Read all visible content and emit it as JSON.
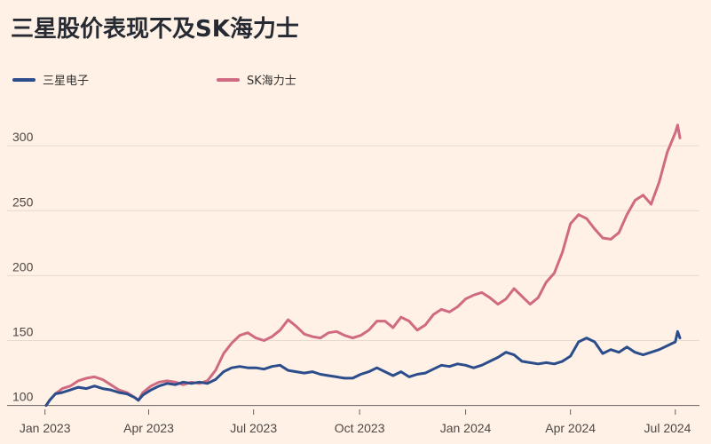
{
  "title": "三星股价表现不及SK海力士",
  "legend": [
    {
      "name": "三星电子",
      "color": "#2B4D8C"
    },
    {
      "name": "SK海力士",
      "color": "#D06A80"
    }
  ],
  "chart_data": {
    "type": "line",
    "title": "三星股价表现不及SK海力士",
    "xlabel": "",
    "ylabel": "",
    "ylim": [
      97,
      322
    ],
    "y_ticks": [
      100,
      150,
      200,
      250,
      300
    ],
    "x_range": [
      "2023-01-02",
      "2024-07-05"
    ],
    "x_ticks": [
      {
        "date": "2023-01-01",
        "label": "Jan 2023"
      },
      {
        "date": "2023-04-01",
        "label": "Apr 2023"
      },
      {
        "date": "2023-07-01",
        "label": "Jul 2023"
      },
      {
        "date": "2023-10-01",
        "label": "Oct 2023"
      },
      {
        "date": "2024-01-01",
        "label": "Jan 2024"
      },
      {
        "date": "2024-04-01",
        "label": "Apr 2024"
      },
      {
        "date": "2024-07-01",
        "label": "Jul 2024"
      }
    ],
    "grid": true,
    "legend_position": "top-left",
    "series": [
      {
        "name": "三星电子",
        "color": "#2B4D8C",
        "points": [
          [
            "2023-01-02",
            100
          ],
          [
            "2023-01-05",
            104
          ],
          [
            "2023-01-10",
            109
          ],
          [
            "2023-01-16",
            110
          ],
          [
            "2023-01-23",
            112
          ],
          [
            "2023-01-30",
            114
          ],
          [
            "2023-02-06",
            113
          ],
          [
            "2023-02-13",
            115
          ],
          [
            "2023-02-20",
            113
          ],
          [
            "2023-02-27",
            112
          ],
          [
            "2023-03-06",
            110
          ],
          [
            "2023-03-13",
            109
          ],
          [
            "2023-03-20",
            106
          ],
          [
            "2023-03-23",
            104
          ],
          [
            "2023-03-27",
            108
          ],
          [
            "2023-04-03",
            112
          ],
          [
            "2023-04-10",
            115
          ],
          [
            "2023-04-17",
            117
          ],
          [
            "2023-04-24",
            116
          ],
          [
            "2023-05-01",
            118
          ],
          [
            "2023-05-08",
            117
          ],
          [
            "2023-05-15",
            118
          ],
          [
            "2023-05-22",
            117
          ],
          [
            "2023-05-29",
            120
          ],
          [
            "2023-06-05",
            126
          ],
          [
            "2023-06-12",
            129
          ],
          [
            "2023-06-19",
            130
          ],
          [
            "2023-06-26",
            129
          ],
          [
            "2023-07-03",
            129
          ],
          [
            "2023-07-10",
            128
          ],
          [
            "2023-07-17",
            130
          ],
          [
            "2023-07-24",
            131
          ],
          [
            "2023-07-31",
            127
          ],
          [
            "2023-08-07",
            126
          ],
          [
            "2023-08-14",
            125
          ],
          [
            "2023-08-21",
            126
          ],
          [
            "2023-08-28",
            124
          ],
          [
            "2023-09-04",
            123
          ],
          [
            "2023-09-11",
            122
          ],
          [
            "2023-09-18",
            121
          ],
          [
            "2023-09-25",
            121
          ],
          [
            "2023-10-02",
            124
          ],
          [
            "2023-10-09",
            126
          ],
          [
            "2023-10-16",
            129
          ],
          [
            "2023-10-23",
            126
          ],
          [
            "2023-10-30",
            123
          ],
          [
            "2023-11-06",
            126
          ],
          [
            "2023-11-13",
            122
          ],
          [
            "2023-11-20",
            124
          ],
          [
            "2023-11-27",
            125
          ],
          [
            "2023-12-04",
            128
          ],
          [
            "2023-12-11",
            131
          ],
          [
            "2023-12-18",
            130
          ],
          [
            "2023-12-25",
            132
          ],
          [
            "2024-01-01",
            131
          ],
          [
            "2024-01-08",
            129
          ],
          [
            "2024-01-15",
            131
          ],
          [
            "2024-01-22",
            134
          ],
          [
            "2024-01-29",
            137
          ],
          [
            "2024-02-05",
            141
          ],
          [
            "2024-02-12",
            139
          ],
          [
            "2024-02-19",
            134
          ],
          [
            "2024-02-26",
            133
          ],
          [
            "2024-03-04",
            132
          ],
          [
            "2024-03-11",
            133
          ],
          [
            "2024-03-18",
            132
          ],
          [
            "2024-03-25",
            134
          ],
          [
            "2024-04-01",
            138
          ],
          [
            "2024-04-08",
            149
          ],
          [
            "2024-04-15",
            152
          ],
          [
            "2024-04-22",
            149
          ],
          [
            "2024-04-29",
            140
          ],
          [
            "2024-05-06",
            143
          ],
          [
            "2024-05-13",
            141
          ],
          [
            "2024-05-20",
            145
          ],
          [
            "2024-05-27",
            141
          ],
          [
            "2024-06-03",
            139
          ],
          [
            "2024-06-10",
            141
          ],
          [
            "2024-06-17",
            143
          ],
          [
            "2024-06-24",
            146
          ],
          [
            "2024-07-01",
            149
          ],
          [
            "2024-07-03",
            157
          ],
          [
            "2024-07-05",
            152
          ]
        ]
      },
      {
        "name": "SK海力士",
        "color": "#D06A80",
        "points": [
          [
            "2023-01-02",
            100
          ],
          [
            "2023-01-05",
            104
          ],
          [
            "2023-01-10",
            109
          ],
          [
            "2023-01-16",
            113
          ],
          [
            "2023-01-23",
            115
          ],
          [
            "2023-01-30",
            119
          ],
          [
            "2023-02-06",
            121
          ],
          [
            "2023-02-13",
            122
          ],
          [
            "2023-02-20",
            120
          ],
          [
            "2023-02-27",
            116
          ],
          [
            "2023-03-06",
            112
          ],
          [
            "2023-03-13",
            110
          ],
          [
            "2023-03-20",
            106
          ],
          [
            "2023-03-23",
            104
          ],
          [
            "2023-03-27",
            110
          ],
          [
            "2023-04-03",
            115
          ],
          [
            "2023-04-10",
            118
          ],
          [
            "2023-04-17",
            119
          ],
          [
            "2023-04-24",
            118
          ],
          [
            "2023-05-01",
            116
          ],
          [
            "2023-05-08",
            118
          ],
          [
            "2023-05-15",
            117
          ],
          [
            "2023-05-22",
            119
          ],
          [
            "2023-05-29",
            127
          ],
          [
            "2023-06-05",
            140
          ],
          [
            "2023-06-12",
            148
          ],
          [
            "2023-06-19",
            154
          ],
          [
            "2023-06-26",
            156
          ],
          [
            "2023-07-03",
            152
          ],
          [
            "2023-07-10",
            150
          ],
          [
            "2023-07-17",
            153
          ],
          [
            "2023-07-24",
            158
          ],
          [
            "2023-07-31",
            166
          ],
          [
            "2023-08-07",
            161
          ],
          [
            "2023-08-14",
            155
          ],
          [
            "2023-08-21",
            153
          ],
          [
            "2023-08-28",
            152
          ],
          [
            "2023-09-04",
            156
          ],
          [
            "2023-09-11",
            157
          ],
          [
            "2023-09-18",
            154
          ],
          [
            "2023-09-25",
            152
          ],
          [
            "2023-10-02",
            154
          ],
          [
            "2023-10-09",
            158
          ],
          [
            "2023-10-16",
            165
          ],
          [
            "2023-10-23",
            165
          ],
          [
            "2023-10-30",
            160
          ],
          [
            "2023-11-06",
            168
          ],
          [
            "2023-11-13",
            165
          ],
          [
            "2023-11-20",
            158
          ],
          [
            "2023-11-27",
            162
          ],
          [
            "2023-12-04",
            170
          ],
          [
            "2023-12-11",
            174
          ],
          [
            "2023-12-18",
            172
          ],
          [
            "2023-12-25",
            176
          ],
          [
            "2024-01-01",
            182
          ],
          [
            "2024-01-08",
            185
          ],
          [
            "2024-01-15",
            187
          ],
          [
            "2024-01-22",
            183
          ],
          [
            "2024-01-29",
            178
          ],
          [
            "2024-02-05",
            182
          ],
          [
            "2024-02-12",
            190
          ],
          [
            "2024-02-19",
            184
          ],
          [
            "2024-02-26",
            178
          ],
          [
            "2024-03-04",
            183
          ],
          [
            "2024-03-11",
            195
          ],
          [
            "2024-03-18",
            202
          ],
          [
            "2024-03-25",
            218
          ],
          [
            "2024-04-01",
            240
          ],
          [
            "2024-04-08",
            247
          ],
          [
            "2024-04-15",
            244
          ],
          [
            "2024-04-22",
            236
          ],
          [
            "2024-04-29",
            229
          ],
          [
            "2024-05-06",
            228
          ],
          [
            "2024-05-13",
            233
          ],
          [
            "2024-05-20",
            247
          ],
          [
            "2024-05-27",
            258
          ],
          [
            "2024-06-03",
            262
          ],
          [
            "2024-06-10",
            255
          ],
          [
            "2024-06-17",
            272
          ],
          [
            "2024-06-24",
            295
          ],
          [
            "2024-07-01",
            310
          ],
          [
            "2024-07-03",
            316
          ],
          [
            "2024-07-05",
            306
          ]
        ]
      }
    ]
  }
}
